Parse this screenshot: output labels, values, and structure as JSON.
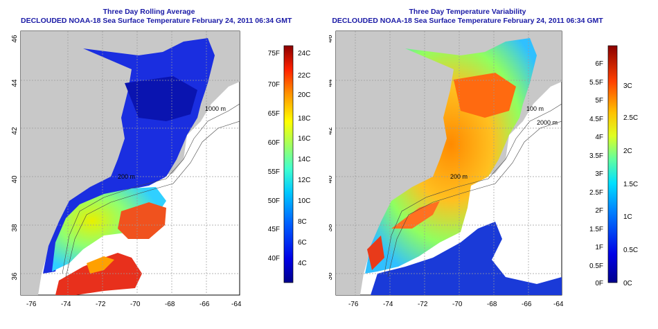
{
  "left_panel": {
    "title_line1": "Three Day Rolling Average",
    "title_line2": "DECLOUDED NOAA-18 Sea Surface Temperature February 24, 2011 06:34 GMT",
    "colorbar_f_labels": [
      "75F",
      "70F",
      "65F",
      "60F",
      "55F",
      "50F",
      "45F",
      "40F"
    ],
    "colorbar_c_labels": [
      "24C",
      "22C",
      "20C",
      "18C",
      "16C",
      "14C",
      "12C",
      "10C",
      "8C",
      "6C",
      "4C"
    ]
  },
  "right_panel": {
    "title_line1": "Three Day Temperature Variability",
    "title_line2": "DECLOUDED NOAA-18 Sea Surface Temperature February 24, 2011 06:34 GMT",
    "colorbar_f_labels": [
      "6F",
      "5.5F",
      "5F",
      "4.5F",
      "4F",
      "3.5F",
      "3F",
      "2.5F",
      "2F",
      "1.5F",
      "1F",
      "0.5F",
      "0F"
    ],
    "colorbar_c_labels": [
      "3C",
      "2.5C",
      "2C",
      "1.5C",
      "1C",
      "0.5C",
      "0C"
    ]
  },
  "map_axes": {
    "lon_labels": [
      "-76",
      "-74",
      "-72",
      "-70",
      "-68",
      "-66",
      "-64"
    ],
    "lat_labels": [
      "46",
      "44",
      "42",
      "40",
      "38",
      "36"
    ]
  },
  "contour_labels": {
    "m200": "200 m",
    "m1000": "1000 m",
    "m100": "100 m",
    "m2000": "2000 m"
  },
  "colors": {
    "title": "#1a1aa6",
    "land": "#c8c8c8",
    "sst_cold": "#1a1ad6",
    "sst_warm": "#e83a1a",
    "grid": "#9a9a9a"
  }
}
